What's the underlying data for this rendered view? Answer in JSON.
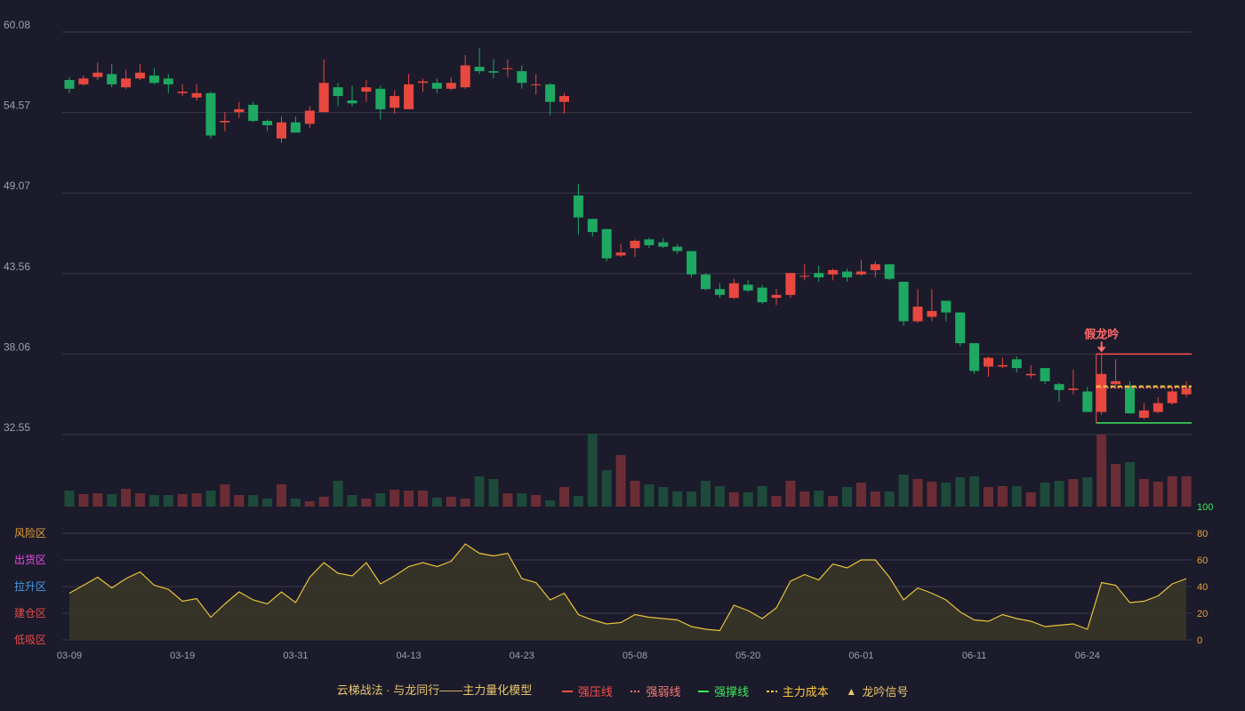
{
  "colors": {
    "background": "#1b1b2b",
    "up": "#e8483f",
    "down": "#1ea862",
    "vol_up": "#6b2d35",
    "vol_down": "#1d4a3a",
    "indicator_line": "#e8c33a",
    "strong_pressure": "#ff4d4d",
    "weak_pressure": "#ff7a7a",
    "support": "#3ee65a",
    "main_cost": "#ffc83a",
    "signal": "#e8c66a",
    "grid": "#3a3a4a",
    "tick": "#a0a0aa"
  },
  "chart_data": [
    {
      "type": "candlestick",
      "y_ticks": [
        "60.08",
        "54.57",
        "49.07",
        "43.56",
        "38.06",
        "32.55"
      ],
      "ylim": [
        32.55,
        60.08
      ],
      "x_ticks": [
        {
          "index": 0,
          "label": "03-09"
        },
        {
          "index": 8,
          "label": "03-19"
        },
        {
          "index": 16,
          "label": "03-31"
        },
        {
          "index": 24,
          "label": "04-13"
        },
        {
          "index": 32,
          "label": "04-23"
        },
        {
          "index": 40,
          "label": "05-08"
        },
        {
          "index": 48,
          "label": "05-20"
        },
        {
          "index": 56,
          "label": "06-01"
        },
        {
          "index": 64,
          "label": "06-11"
        },
        {
          "index": 72,
          "label": "06-24"
        }
      ],
      "candles": [
        [
          56.8,
          56.2,
          57.0,
          55.9
        ],
        [
          56.5,
          56.9,
          57.1,
          56.4
        ],
        [
          57.0,
          57.3,
          58.0,
          56.8
        ],
        [
          57.2,
          56.5,
          57.9,
          56.3
        ],
        [
          56.3,
          56.9,
          57.5,
          56.2
        ],
        [
          56.9,
          57.3,
          57.9,
          56.8
        ],
        [
          57.1,
          56.6,
          57.6,
          56.5
        ],
        [
          56.9,
          56.5,
          57.2,
          55.9
        ],
        [
          55.9,
          56.0,
          56.5,
          55.7
        ],
        [
          55.6,
          55.9,
          56.5,
          55.4
        ],
        [
          55.9,
          53.0,
          56.0,
          52.8
        ],
        [
          53.9,
          54.0,
          54.6,
          53.3
        ],
        [
          54.6,
          54.8,
          55.3,
          54.2
        ],
        [
          55.1,
          54.0,
          55.3,
          53.9
        ],
        [
          54.0,
          53.7,
          54.1,
          53.3
        ],
        [
          52.8,
          53.9,
          54.3,
          52.5
        ],
        [
          53.9,
          53.2,
          54.3,
          53.2
        ],
        [
          53.8,
          54.7,
          55.0,
          53.5
        ],
        [
          54.6,
          56.6,
          58.2,
          54.6
        ],
        [
          56.3,
          55.7,
          56.6,
          55.0
        ],
        [
          55.4,
          55.2,
          56.4,
          55.0
        ],
        [
          56.0,
          56.3,
          56.8,
          55.3
        ],
        [
          56.2,
          54.8,
          56.4,
          54.1
        ],
        [
          54.9,
          55.7,
          56.1,
          54.5
        ],
        [
          54.8,
          56.5,
          57.2,
          54.8
        ],
        [
          56.6,
          56.7,
          56.9,
          56.0
        ],
        [
          56.6,
          56.2,
          56.9,
          55.9
        ],
        [
          56.2,
          56.6,
          57.0,
          56.1
        ],
        [
          56.3,
          57.8,
          58.5,
          56.2
        ],
        [
          57.7,
          57.4,
          59.0,
          57.2
        ],
        [
          57.4,
          57.3,
          58.2,
          56.9
        ],
        [
          57.6,
          57.6,
          58.2,
          57.0
        ],
        [
          57.4,
          56.6,
          57.8,
          56.2
        ],
        [
          56.5,
          56.5,
          57.2,
          55.8
        ],
        [
          56.5,
          55.3,
          56.6,
          54.4
        ],
        [
          55.3,
          55.7,
          55.9,
          54.5
        ],
        [
          48.9,
          47.4,
          49.7,
          46.2
        ],
        [
          47.3,
          46.4,
          47.3,
          46.1
        ],
        [
          46.6,
          44.6,
          46.6,
          44.4
        ],
        [
          44.8,
          45.0,
          45.6,
          44.7
        ],
        [
          45.3,
          45.8,
          45.9,
          44.7
        ],
        [
          45.9,
          45.5,
          46.0,
          45.3
        ],
        [
          45.7,
          45.4,
          46.0,
          45.3
        ],
        [
          45.4,
          45.1,
          45.6,
          44.9
        ],
        [
          45.1,
          43.5,
          45.1,
          43.3
        ],
        [
          43.5,
          42.5,
          43.6,
          42.4
        ],
        [
          42.5,
          42.1,
          42.9,
          41.9
        ],
        [
          41.9,
          42.9,
          43.2,
          41.8
        ],
        [
          42.8,
          42.4,
          43.1,
          42.3
        ],
        [
          42.6,
          41.6,
          42.8,
          41.5
        ],
        [
          41.9,
          42.1,
          42.5,
          41.4
        ],
        [
          42.1,
          43.6,
          43.6,
          41.9
        ],
        [
          43.4,
          43.4,
          44.2,
          43.1
        ],
        [
          43.6,
          43.3,
          44.1,
          43.0
        ],
        [
          43.5,
          43.8,
          43.9,
          43.1
        ],
        [
          43.7,
          43.3,
          43.9,
          43.0
        ],
        [
          43.5,
          43.7,
          44.5,
          43.4
        ],
        [
          43.8,
          44.2,
          44.4,
          43.3
        ],
        [
          44.2,
          43.2,
          44.2,
          43.1
        ],
        [
          43.0,
          40.3,
          43.0,
          40.0
        ],
        [
          40.3,
          41.3,
          42.5,
          40.2
        ],
        [
          40.6,
          41.0,
          42.5,
          40.3
        ],
        [
          41.7,
          40.9,
          41.7,
          40.3
        ],
        [
          40.9,
          38.8,
          40.9,
          38.6
        ],
        [
          38.8,
          36.9,
          38.8,
          36.7
        ],
        [
          37.2,
          37.8,
          37.9,
          36.5
        ],
        [
          37.2,
          37.3,
          37.8,
          37.1
        ],
        [
          37.7,
          37.1,
          37.9,
          36.8
        ],
        [
          36.6,
          36.7,
          37.3,
          36.4
        ],
        [
          37.1,
          36.2,
          37.1,
          36.0
        ],
        [
          36.0,
          35.6,
          36.1,
          34.8
        ],
        [
          35.6,
          35.7,
          37.0,
          35.3
        ],
        [
          35.5,
          34.1,
          35.8,
          34.1
        ],
        [
          34.1,
          36.7,
          38.1,
          33.9
        ],
        [
          36.0,
          36.2,
          37.7,
          35.7
        ],
        [
          35.9,
          34.0,
          36.2,
          34.0
        ],
        [
          33.7,
          34.2,
          34.7,
          33.6
        ],
        [
          34.1,
          34.7,
          35.1,
          34.0
        ],
        [
          34.7,
          35.5,
          35.8,
          34.6
        ],
        [
          35.3,
          35.7,
          36.2,
          35.1
        ]
      ],
      "annotations": {
        "signal_label": "假龙吟",
        "signal_index": 73,
        "strong_pressure": 38.06,
        "weak_pressure": 35.75,
        "main_cost": 35.85,
        "support": 33.35,
        "levels_from_index": 73
      }
    },
    {
      "type": "bar",
      "name": "volume",
      "values": [
        18,
        14,
        15,
        14,
        20,
        15,
        13,
        13,
        14,
        15,
        18,
        25,
        13,
        13,
        9,
        25,
        9,
        6,
        11,
        29,
        13,
        9,
        15,
        19,
        18,
        18,
        10,
        11,
        9,
        34,
        31,
        15,
        15,
        13,
        7,
        22,
        12,
        82,
        41,
        58,
        29,
        25,
        22,
        17,
        17,
        29,
        23,
        16,
        16,
        23,
        12,
        29,
        17,
        18,
        12,
        22,
        27,
        17,
        17,
        36,
        31,
        28,
        27,
        33,
        34,
        22,
        23,
        23,
        16,
        27,
        29,
        31,
        33,
        81,
        48,
        50,
        31,
        28,
        34,
        34
      ]
    },
    {
      "type": "area",
      "name": "indicator",
      "y_ticks": [
        0,
        20,
        40,
        60,
        80,
        100
      ],
      "ylim": [
        0,
        100
      ],
      "zone_labels": [
        "风险区",
        "出货区",
        "拉升区",
        "建仓区",
        "低吸区"
      ],
      "values": [
        35,
        41,
        47,
        39,
        46,
        51,
        41,
        38,
        29,
        31,
        17,
        27,
        36,
        30,
        27,
        36,
        28,
        47,
        58,
        50,
        48,
        58,
        42,
        48,
        55,
        58,
        55,
        59,
        72,
        65,
        63,
        65,
        46,
        43,
        30,
        35,
        19,
        15,
        12,
        13,
        19,
        17,
        16,
        15,
        10,
        8,
        7,
        26,
        22,
        16,
        24,
        44,
        49,
        45,
        57,
        54,
        60,
        60,
        47,
        30,
        39,
        35,
        30,
        21,
        15,
        14,
        19,
        16,
        14,
        10,
        11,
        12,
        8,
        43,
        41,
        28,
        29,
        33,
        42,
        46
      ]
    }
  ],
  "legend": {
    "title": "云梯战法 · 与龙同行——主力量化模型",
    "items": [
      "强压线",
      "强弱线",
      "强撑线",
      "主力成本",
      "龙吟信号"
    ]
  }
}
